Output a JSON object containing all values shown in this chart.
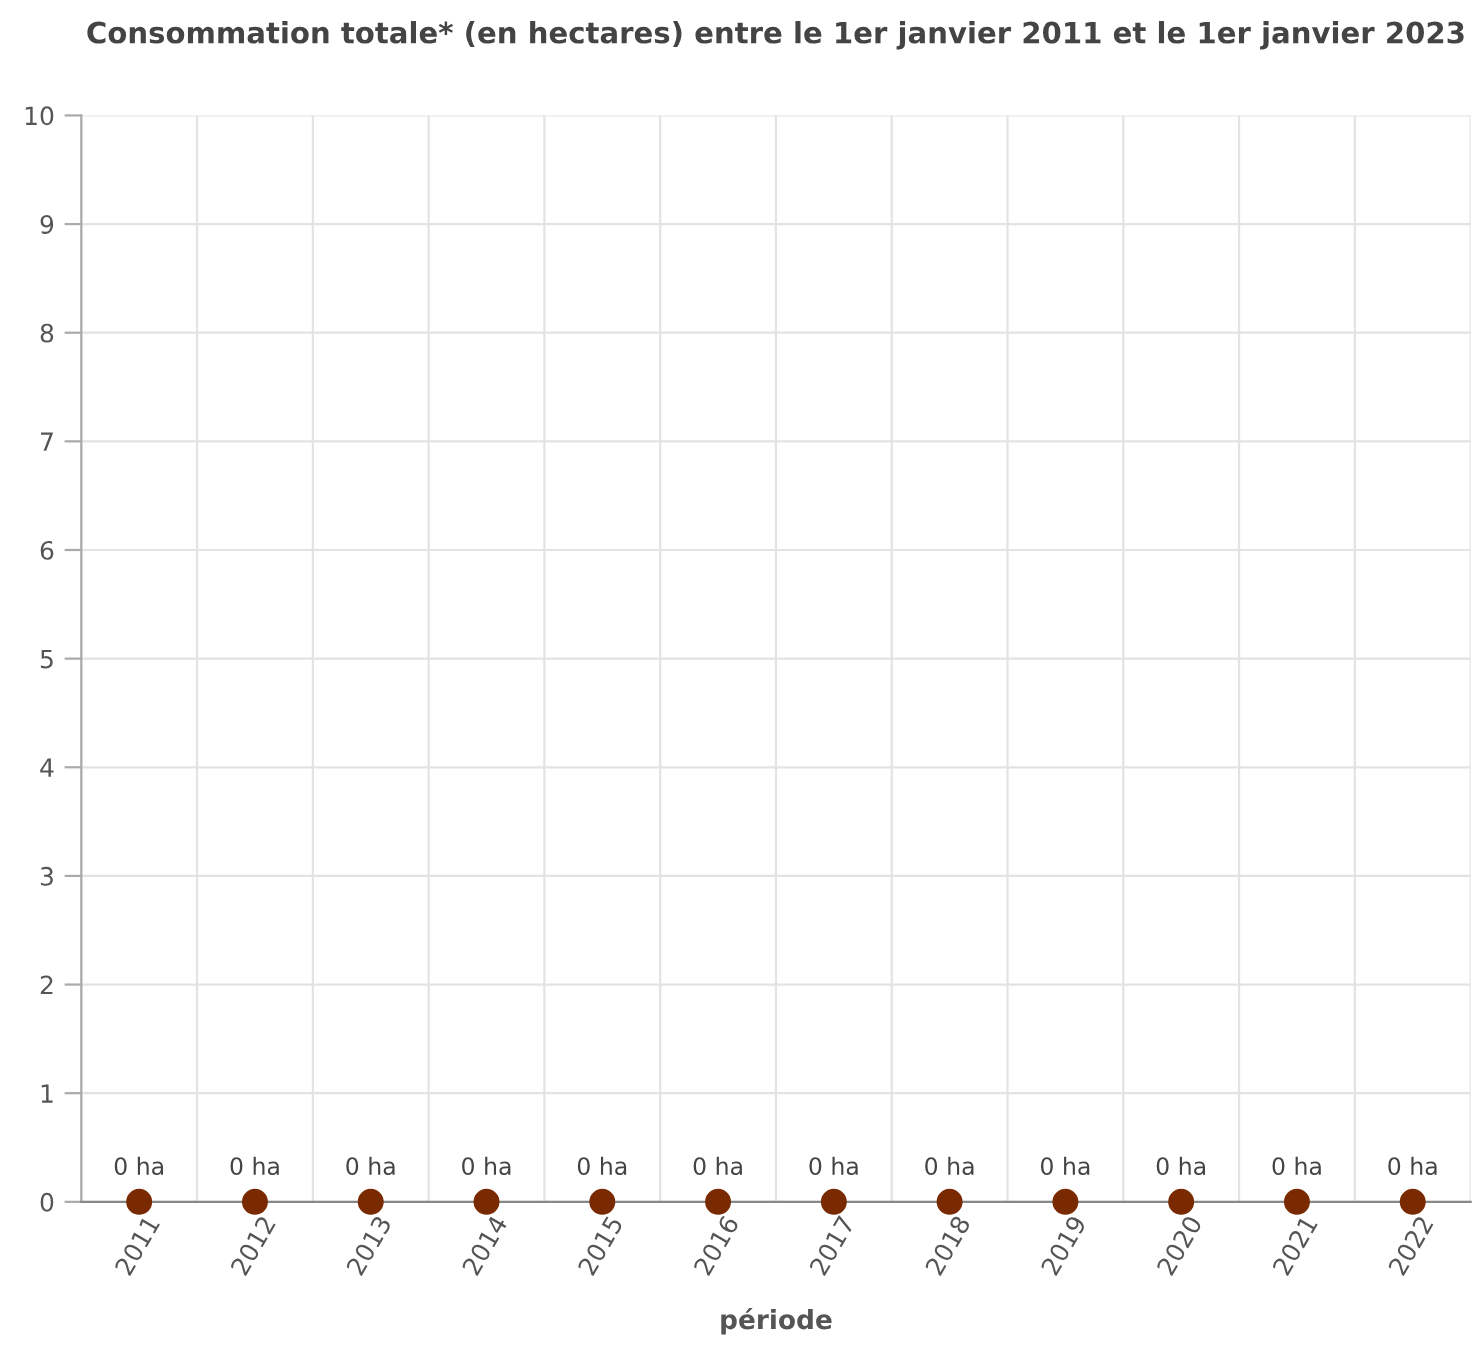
{
  "chart_data": {
    "type": "scatter",
    "title": "Consommation totale* (en hectares) entre le 1er janvier 2011 et le 1er janvier 2023",
    "xlabel": "période",
    "categories": [
      "2011",
      "2012",
      "2013",
      "2014",
      "2015",
      "2016",
      "2017",
      "2018",
      "2019",
      "2020",
      "2021",
      "2022"
    ],
    "values": [
      0,
      0,
      0,
      0,
      0,
      0,
      0,
      0,
      0,
      0,
      0,
      0
    ],
    "value_labels": [
      "0 ha",
      "0 ha",
      "0 ha",
      "0 ha",
      "0 ha",
      "0 ha",
      "0 ha",
      "0 ha",
      "0 ha",
      "0 ha",
      "0 ha",
      "0 ha"
    ],
    "color": "#7a2a00",
    "marker": "circle",
    "ylim": [
      0,
      10
    ],
    "yticks": [
      0,
      1,
      2,
      3,
      4,
      5,
      6,
      7,
      8,
      9,
      10
    ],
    "grid": true,
    "legend": false
  }
}
